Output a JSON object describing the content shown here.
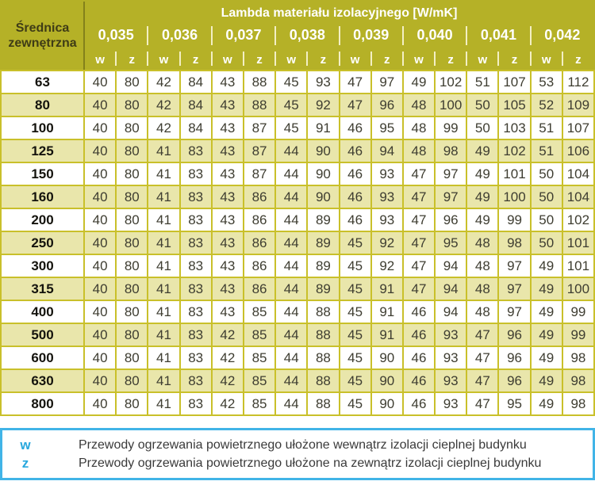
{
  "table": {
    "corner_header": "Średnica zewnętrzna",
    "lambda_title": "Lambda materiału izolacyjnego [W/mK]",
    "lambda_values": [
      "0,035",
      "0,036",
      "0,037",
      "0,038",
      "0,039",
      "0,040",
      "0,041",
      "0,042"
    ],
    "sub_headers": [
      "w",
      "z"
    ],
    "rows": [
      {
        "diameter": "63",
        "values": [
          40,
          80,
          42,
          84,
          43,
          88,
          45,
          93,
          47,
          97,
          49,
          102,
          51,
          107,
          53,
          112
        ]
      },
      {
        "diameter": "80",
        "values": [
          40,
          80,
          42,
          84,
          43,
          88,
          45,
          92,
          47,
          96,
          48,
          100,
          50,
          105,
          52,
          109
        ]
      },
      {
        "diameter": "100",
        "values": [
          40,
          80,
          42,
          84,
          43,
          87,
          45,
          91,
          46,
          95,
          48,
          99,
          50,
          103,
          51,
          107
        ]
      },
      {
        "diameter": "125",
        "values": [
          40,
          80,
          41,
          83,
          43,
          87,
          44,
          90,
          46,
          94,
          48,
          98,
          49,
          102,
          51,
          106
        ]
      },
      {
        "diameter": "150",
        "values": [
          40,
          80,
          41,
          83,
          43,
          87,
          44,
          90,
          46,
          93,
          47,
          97,
          49,
          101,
          50,
          104
        ]
      },
      {
        "diameter": "160",
        "values": [
          40,
          80,
          41,
          83,
          43,
          86,
          44,
          90,
          46,
          93,
          47,
          97,
          49,
          100,
          50,
          104
        ]
      },
      {
        "diameter": "200",
        "values": [
          40,
          80,
          41,
          83,
          43,
          86,
          44,
          89,
          46,
          93,
          47,
          96,
          49,
          99,
          50,
          102
        ]
      },
      {
        "diameter": "250",
        "values": [
          40,
          80,
          41,
          83,
          43,
          86,
          44,
          89,
          45,
          92,
          47,
          95,
          48,
          98,
          50,
          101
        ]
      },
      {
        "diameter": "300",
        "values": [
          40,
          80,
          41,
          83,
          43,
          86,
          44,
          89,
          45,
          92,
          47,
          94,
          48,
          97,
          49,
          101
        ]
      },
      {
        "diameter": "315",
        "values": [
          40,
          80,
          41,
          83,
          43,
          86,
          44,
          89,
          45,
          91,
          47,
          94,
          48,
          97,
          49,
          100
        ]
      },
      {
        "diameter": "400",
        "values": [
          40,
          80,
          41,
          83,
          43,
          85,
          44,
          88,
          45,
          91,
          46,
          94,
          48,
          97,
          49,
          99
        ]
      },
      {
        "diameter": "500",
        "values": [
          40,
          80,
          41,
          83,
          42,
          85,
          44,
          88,
          45,
          91,
          46,
          93,
          47,
          96,
          49,
          99
        ]
      },
      {
        "diameter": "600",
        "values": [
          40,
          80,
          41,
          83,
          42,
          85,
          44,
          88,
          45,
          90,
          46,
          93,
          47,
          96,
          49,
          98
        ]
      },
      {
        "diameter": "630",
        "values": [
          40,
          80,
          41,
          83,
          42,
          85,
          44,
          88,
          45,
          90,
          46,
          93,
          47,
          96,
          49,
          98
        ]
      },
      {
        "diameter": "800",
        "values": [
          40,
          80,
          41,
          83,
          42,
          85,
          44,
          88,
          45,
          90,
          46,
          93,
          47,
          95,
          49,
          98
        ]
      }
    ]
  },
  "legend": {
    "items": [
      {
        "symbol": "w",
        "text": "Przewody ogrzewania powietrznego ułożone wewnątrz izolacji cieplnej budynku"
      },
      {
        "symbol": "z",
        "text": "Przewody ogrzewania powietrznego ułożone na zewnątrz izolacji cieplnej budynku"
      }
    ]
  },
  "colors": {
    "header_bg": "#b5b127",
    "grid_border": "#c9c02a",
    "row_alt": "#e9e6ab",
    "pale_sep": "#f3efc4",
    "dark_divider": "#84811b",
    "corner_text": "#3f3c16",
    "data_text": "#3e3d31",
    "legend_border": "#41b4e7",
    "legend_symbol": "#29a8dd"
  }
}
